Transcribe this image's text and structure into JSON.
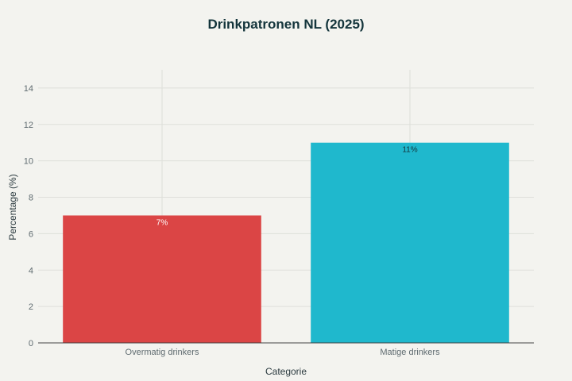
{
  "chart_data": {
    "type": "bar",
    "title": "Drinkpatronen NL (2025)",
    "xlabel": "Categorie",
    "ylabel": "Percentage (%)",
    "categories": [
      "Overmatig drinkers",
      "Matige drinkers"
    ],
    "values": [
      7,
      11
    ],
    "data_labels": [
      "7%",
      "11%"
    ],
    "ylim": [
      0,
      15
    ],
    "yticks": [
      0,
      2,
      4,
      6,
      8,
      10,
      12,
      14
    ],
    "grid": true,
    "colors": [
      "#db4545",
      "#1fb8cd"
    ],
    "label_colors": [
      "#ffffff",
      "#13343b"
    ]
  }
}
